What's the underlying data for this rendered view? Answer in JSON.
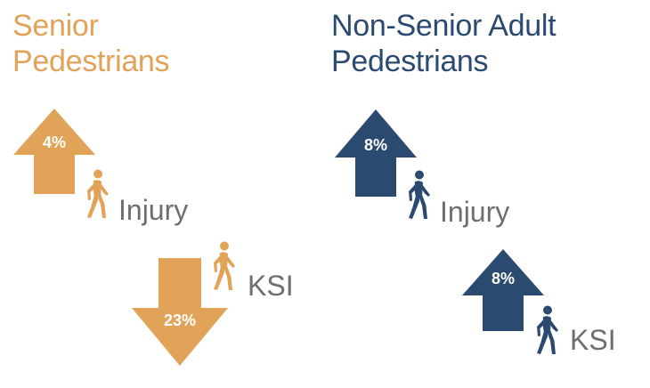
{
  "colors": {
    "senior": "#e0a357",
    "nonsenior": "#2b4a6f",
    "label": "#6e6e6e"
  },
  "senior": {
    "title_line1": "Senior",
    "title_line2": "Pedestrians",
    "injury": {
      "direction": "up",
      "value": "4%",
      "label": "Injury",
      "icon": "pedestrian-icon"
    },
    "ksi": {
      "direction": "down",
      "value": "23%",
      "label": "KSI",
      "icon": "pedestrian-icon"
    }
  },
  "nonsenior": {
    "title_line1": "Non-Senior Adult",
    "title_line2": "Pedestrians",
    "injury": {
      "direction": "up",
      "value": "8%",
      "label": "Injury",
      "icon": "pedestrian-icon"
    },
    "ksi": {
      "direction": "up",
      "value": "8%",
      "label": "KSI",
      "icon": "pedestrian-icon"
    }
  }
}
